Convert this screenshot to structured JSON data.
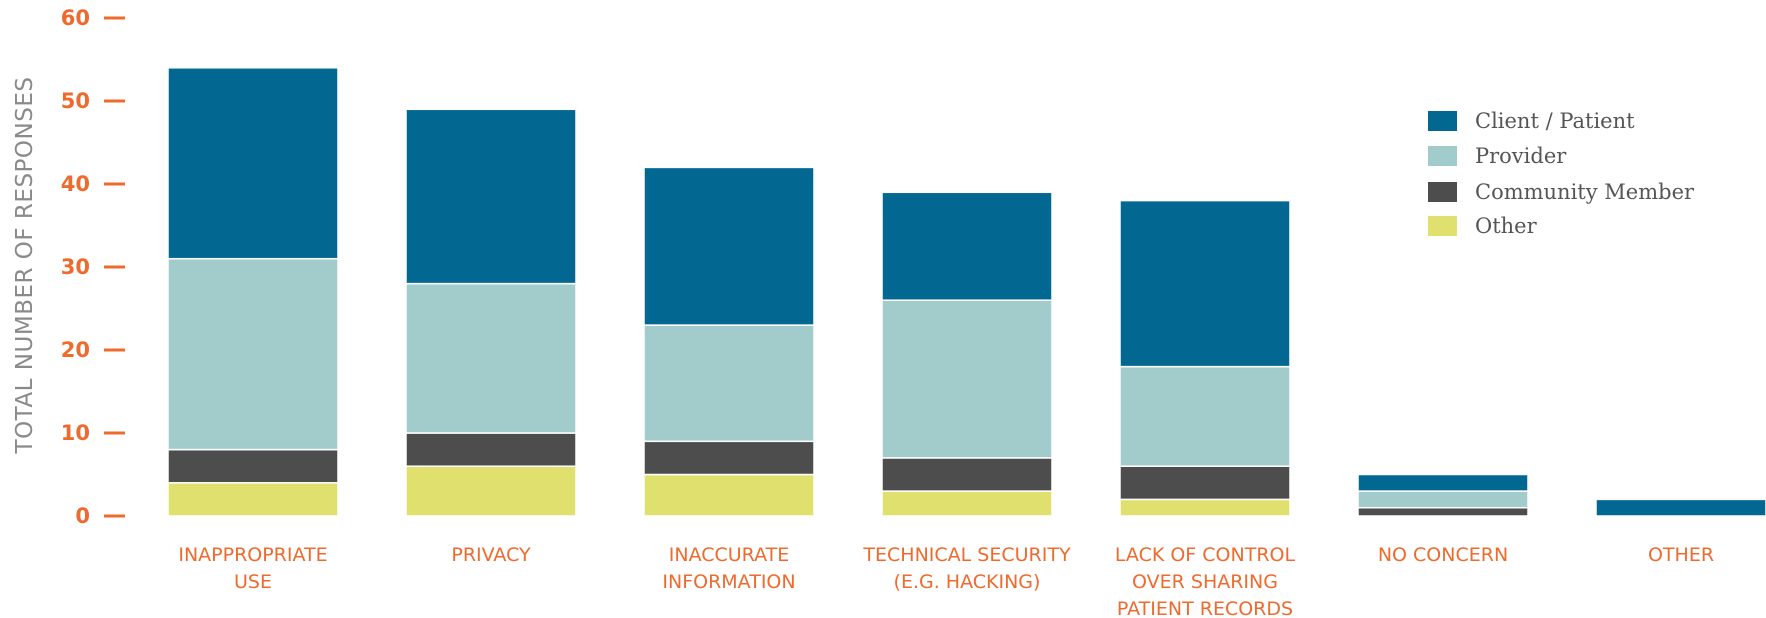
{
  "chart_data": {
    "type": "bar",
    "stacked": true,
    "ylabel": "TOTAL NUMBER OF RESPONSES",
    "xlabel": "",
    "ylim": [
      0,
      60
    ],
    "yticks": [
      "0",
      "10",
      "20",
      "30",
      "40",
      "50",
      "60"
    ],
    "categories": [
      [
        "INAPPROPRIATE",
        "USE"
      ],
      [
        "PRIVACY"
      ],
      [
        "INACCURATE",
        "INFORMATION"
      ],
      [
        "TECHNICAL SECURITY",
        "(E.G. HACKING)"
      ],
      [
        "LACK OF CONTROL",
        "OVER SHARING",
        "PATIENT RECORDS"
      ],
      [
        "NO CONCERN"
      ],
      [
        "OTHER"
      ]
    ],
    "series": [
      {
        "name": "Other",
        "color": "#dfe06e",
        "values": [
          4,
          6,
          5,
          3,
          2,
          0,
          0
        ]
      },
      {
        "name": "Community Member",
        "color": "#4d4d4d",
        "values": [
          4,
          4,
          4,
          4,
          4,
          1,
          0
        ]
      },
      {
        "name": "Provider",
        "color": "#a2cccb",
        "values": [
          23,
          18,
          14,
          19,
          12,
          2,
          0
        ]
      },
      {
        "name": "Client / Patient",
        "color": "#026892",
        "values": [
          23,
          21,
          19,
          13,
          20,
          2,
          2
        ]
      }
    ],
    "legend_order": [
      "Client / Patient",
      "Provider",
      "Community Member",
      "Other"
    ],
    "legend_position": "top-right",
    "grid": false
  }
}
